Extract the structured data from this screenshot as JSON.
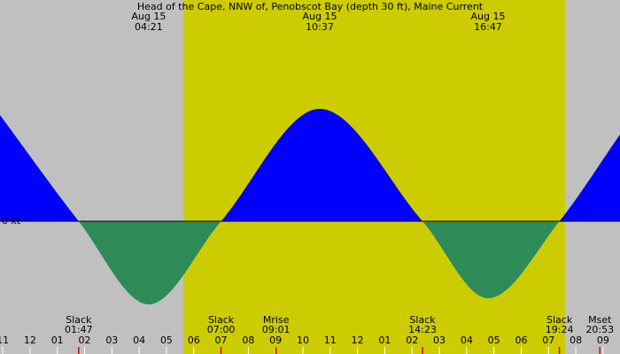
{
  "chart_data": {
    "type": "tide-current",
    "title": "Head of the Cape, NNW of, Penobscot Bay (depth 30 ft), Maine Current",
    "zero_label": "0 kt",
    "x": [
      -1.1,
      1.783,
      4.35,
      7.0,
      10.617,
      14.383,
      16.783,
      19.4,
      21.62
    ],
    "values": [
      1.2,
      0,
      -0.94,
      0,
      1.27,
      0,
      -0.87,
      0,
      0.98
    ],
    "flood_color": "#0000ff",
    "ebb_color": "#2e8b57",
    "night_color": "#c0c0c0",
    "day_color": "#cccc00",
    "daylight": [
      5.62,
      19.61
    ],
    "xlim": [
      -1.1,
      21.62
    ],
    "ylim": [
      -1.5,
      2.5
    ],
    "xticks": [
      {
        "value": -1,
        "label": "11"
      },
      {
        "value": 0,
        "label": "12"
      },
      {
        "value": 1,
        "label": "01"
      },
      {
        "value": 2,
        "label": "02"
      },
      {
        "value": 3,
        "label": "03"
      },
      {
        "value": 4,
        "label": "04"
      },
      {
        "value": 5,
        "label": "05"
      },
      {
        "value": 6,
        "label": "06"
      },
      {
        "value": 7,
        "label": "07"
      },
      {
        "value": 8,
        "label": "08"
      },
      {
        "value": 9,
        "label": "09"
      },
      10,
      11,
      12,
      {
        "value": 13,
        "label": "01"
      },
      {
        "value": 14,
        "label": "02"
      },
      {
        "value": 15,
        "label": "03"
      },
      {
        "value": 16,
        "label": "04"
      },
      {
        "value": 17,
        "label": "05"
      },
      {
        "value": 18,
        "label": "06"
      },
      {
        "value": 19,
        "label": "07"
      },
      {
        "value": 20,
        "label": "08"
      },
      {
        "value": 21,
        "label": "09"
      }
    ],
    "peaks": [
      {
        "date": "Aug 15",
        "time": "04:21",
        "x": 4.35
      },
      {
        "date": "Aug 15",
        "time": "10:37",
        "x": 10.617
      },
      {
        "date": "Aug 15",
        "time": "16:47",
        "x": 16.783
      }
    ],
    "events": [
      {
        "label": "Slack",
        "time": "01:47",
        "x": 1.783
      },
      {
        "label": "Slack",
        "time": "07:00",
        "x": 7.0
      },
      {
        "label": "Mrise",
        "time": "09:01",
        "x": 9.017
      },
      {
        "label": "Slack",
        "time": "14:23",
        "x": 14.383
      },
      {
        "label": "Slack",
        "time": "19:24",
        "x": 19.4
      },
      {
        "label": "Mset",
        "time": "20:53",
        "x": 20.883
      }
    ]
  }
}
